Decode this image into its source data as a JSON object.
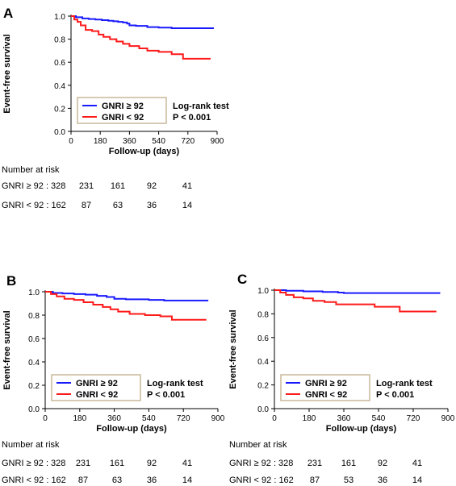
{
  "legend_labels": {
    "high": "GNRI ≥ 92",
    "low": "GNRI < 92",
    "test": "Log-rank test",
    "p": "P < 0.001"
  },
  "colors": {
    "high": "#1a1aff",
    "low": "#ff1a1a",
    "legend_border": "#c8b89a"
  },
  "chart_data": [
    {
      "type": "line",
      "panel_label": "A",
      "xlabel": "Follow-up (days)",
      "ylabel": "Event-free survival",
      "xlim": [
        0,
        900
      ],
      "ylim": [
        0,
        1.0
      ],
      "xticks": [
        0,
        180,
        360,
        540,
        720,
        900
      ],
      "yticks": [
        0.0,
        0.2,
        0.4,
        0.6,
        0.8,
        1.0
      ],
      "legend_position": "bottom-left",
      "series": [
        {
          "name": "GNRI ≥ 92",
          "color": "#1a1aff",
          "x": [
            0,
            30,
            70,
            110,
            150,
            190,
            230,
            260,
            290,
            320,
            345,
            360,
            400,
            470,
            540,
            620,
            880
          ],
          "y": [
            1.0,
            0.99,
            0.98,
            0.975,
            0.97,
            0.965,
            0.96,
            0.955,
            0.95,
            0.945,
            0.935,
            0.92,
            0.915,
            0.905,
            0.9,
            0.895,
            0.895
          ]
        },
        {
          "name": "GNRI < 92",
          "color": "#ff1a1a",
          "x": [
            0,
            20,
            40,
            60,
            90,
            130,
            170,
            200,
            240,
            280,
            320,
            360,
            420,
            470,
            540,
            620,
            690,
            860
          ],
          "y": [
            1.0,
            0.97,
            0.95,
            0.92,
            0.88,
            0.87,
            0.84,
            0.82,
            0.8,
            0.78,
            0.76,
            0.74,
            0.72,
            0.7,
            0.69,
            0.67,
            0.63,
            0.63
          ]
        }
      ],
      "risk_table": {
        "title": "Number at risk",
        "rows": [
          {
            "label": "GNRI ≥ 92 : 328",
            "values": [
              "231",
              "161",
              "92",
              "41"
            ]
          },
          {
            "label": "GNRI < 92 : 162",
            "values": [
              "87",
              "63",
              "36",
              "14"
            ]
          }
        ]
      }
    },
    {
      "type": "line",
      "panel_label": "B",
      "xlabel": "Follow-up (days)",
      "ylabel": "Event-free survival",
      "xlim": [
        0,
        900
      ],
      "ylim": [
        0,
        1.0
      ],
      "xticks": [
        0,
        180,
        360,
        540,
        720,
        900
      ],
      "yticks": [
        0.0,
        0.2,
        0.4,
        0.6,
        0.8,
        1.0
      ],
      "legend_position": "bottom-left",
      "series": [
        {
          "name": "GNRI ≥ 92",
          "color": "#1a1aff",
          "x": [
            0,
            40,
            90,
            150,
            210,
            270,
            320,
            360,
            420,
            540,
            620,
            850
          ],
          "y": [
            1.0,
            0.99,
            0.985,
            0.98,
            0.975,
            0.965,
            0.955,
            0.94,
            0.935,
            0.93,
            0.925,
            0.925
          ]
        },
        {
          "name": "GNRI < 92",
          "color": "#ff1a1a",
          "x": [
            0,
            30,
            60,
            100,
            150,
            200,
            250,
            300,
            340,
            380,
            440,
            520,
            600,
            660,
            840
          ],
          "y": [
            1.0,
            0.98,
            0.96,
            0.94,
            0.93,
            0.91,
            0.89,
            0.87,
            0.85,
            0.83,
            0.81,
            0.8,
            0.79,
            0.76,
            0.76
          ]
        }
      ],
      "risk_table": {
        "title": "Number at risk",
        "rows": [
          {
            "label": "GNRI ≥ 92 : 328",
            "values": [
              "231",
              "161",
              "92",
              "41"
            ]
          },
          {
            "label": "GNRI < 92 : 162",
            "values": [
              "87",
              "63",
              "36",
              "14"
            ]
          }
        ]
      }
    },
    {
      "type": "line",
      "panel_label": "C",
      "xlabel": "Follow-up (days)",
      "ylabel": "Event-free survival",
      "xlim": [
        0,
        900
      ],
      "ylim": [
        0,
        1.0
      ],
      "xticks": [
        0,
        180,
        360,
        540,
        720,
        900
      ],
      "yticks": [
        0.0,
        0.2,
        0.4,
        0.6,
        0.8,
        1.0
      ],
      "legend_position": "bottom-left",
      "series": [
        {
          "name": "GNRI ≥ 92",
          "color": "#1a1aff",
          "x": [
            0,
            60,
            150,
            250,
            330,
            360,
            450,
            860
          ],
          "y": [
            1.0,
            0.995,
            0.99,
            0.985,
            0.98,
            0.975,
            0.975,
            0.975
          ]
        },
        {
          "name": "GNRI < 92",
          "color": "#ff1a1a",
          "x": [
            0,
            30,
            60,
            100,
            150,
            200,
            260,
            320,
            420,
            520,
            600,
            650,
            840
          ],
          "y": [
            1.0,
            0.98,
            0.96,
            0.94,
            0.93,
            0.91,
            0.9,
            0.88,
            0.88,
            0.86,
            0.86,
            0.82,
            0.82
          ]
        }
      ],
      "risk_table": {
        "title": "Number at risk",
        "rows": [
          {
            "label": "GNRI ≥ 92 : 328",
            "values": [
              "231",
              "161",
              "92",
              "41"
            ]
          },
          {
            "label": "GNRI < 92 : 162",
            "values": [
              "87",
              "53",
              "36",
              "14"
            ]
          }
        ]
      }
    }
  ]
}
